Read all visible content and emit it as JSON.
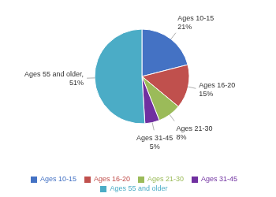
{
  "chart_data": {
    "type": "pie",
    "categories": [
      "Ages 10-15",
      "Ages 16-20",
      "Ages 21-30",
      "Ages 31-45",
      "Ages 55 and older"
    ],
    "values": [
      21,
      15,
      8,
      5,
      51
    ],
    "value_labels": [
      "Ages 10-15\n21%",
      "Ages 16-20\n15%",
      "Ages 21-30\n8%",
      "Ages 31-45\n5%",
      "Ages 55 and older,\n51%"
    ],
    "colors": [
      "#4472c4",
      "#c0504d",
      "#9bbb59",
      "#7030a0",
      "#4bacc6"
    ],
    "data_labels": true,
    "legend": "bottom"
  }
}
